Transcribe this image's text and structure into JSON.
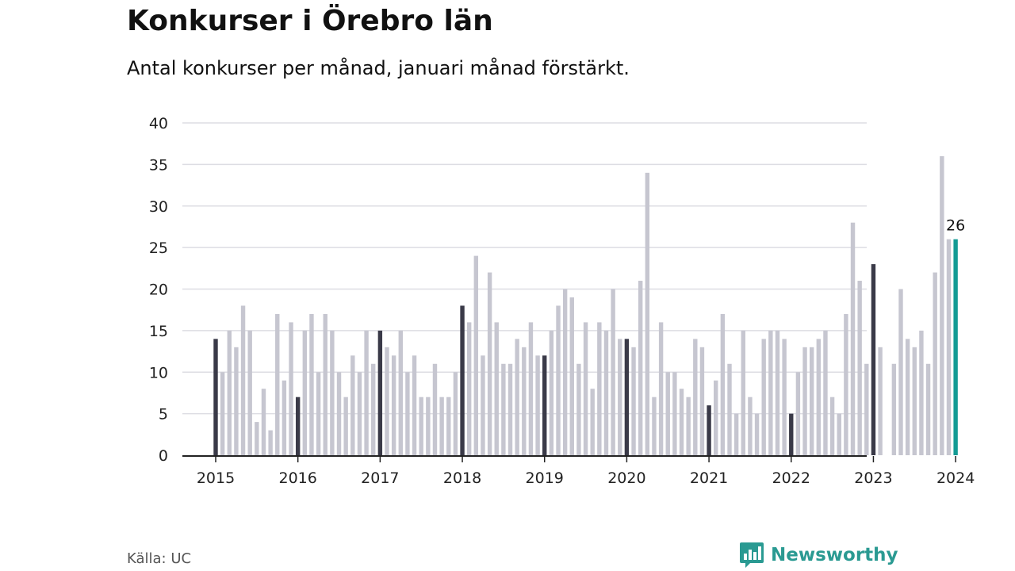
{
  "title": "Konkurser i Örebro län",
  "subtitle": "Antal konkurser per månad, januari månad förstärkt.",
  "source": "Källa: UC",
  "brand": "Newsworthy",
  "colors": {
    "january": "#3a3a48",
    "other": "#c6c6d0",
    "latest": "#139b94",
    "grid": "#dddde3",
    "axis": "#222222"
  },
  "chart_data": {
    "type": "bar",
    "title": "Konkurser i Örebro län",
    "subtitle": "Antal konkurser per månad, januari månad förstärkt.",
    "xlabel": "",
    "ylabel": "",
    "ylim": [
      0,
      40
    ],
    "yticks": [
      0,
      5,
      10,
      15,
      20,
      25,
      30,
      35,
      40
    ],
    "xticks": [
      "2015",
      "2016",
      "2017",
      "2018",
      "2019",
      "2020",
      "2021",
      "2022",
      "2023",
      "2024"
    ],
    "grid": true,
    "start": "2015-01",
    "highlight_label": "26",
    "series": [
      {
        "values": [
          14,
          10,
          15,
          13,
          18,
          15,
          4,
          8,
          3,
          17,
          9,
          16,
          7,
          15,
          17,
          10,
          17,
          15,
          10,
          7,
          12,
          10,
          15,
          11,
          15,
          13,
          12,
          15,
          10,
          12,
          7,
          7,
          11,
          7,
          7,
          10,
          18,
          16,
          24,
          12,
          22,
          16,
          11,
          11,
          14,
          13,
          16,
          12,
          12,
          15,
          18,
          20,
          19,
          11,
          16,
          8,
          16,
          15,
          20,
          14,
          14,
          13,
          21,
          34,
          7,
          16,
          10,
          10,
          8,
          7,
          14,
          13,
          6,
          9,
          17,
          11,
          5,
          15,
          7,
          5,
          14,
          15,
          15,
          14,
          5,
          10,
          13,
          13,
          14,
          15,
          7,
          5,
          17,
          28,
          21,
          11,
          23,
          13,
          0,
          11,
          20,
          14,
          13,
          15,
          11,
          22,
          36,
          26,
          26
        ]
      }
    ]
  }
}
